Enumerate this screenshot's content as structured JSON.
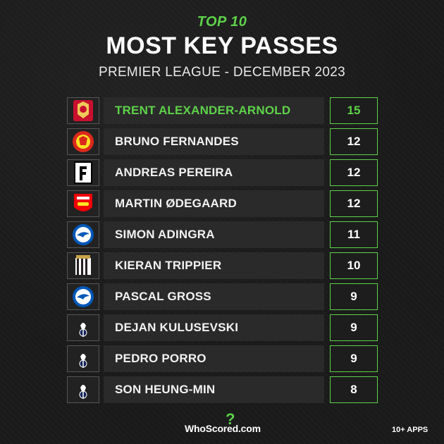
{
  "header": {
    "kicker": "TOP 10",
    "title": "MOST KEY PASSES",
    "subtitle": "PREMIER LEAGUE - DECEMBER 2023"
  },
  "players": [
    {
      "name": "TRENT ALEXANDER-ARNOLD",
      "value": "15",
      "club": "Liverpool",
      "crest_icon": "liverpool-crest-icon",
      "color": "#c8102e"
    },
    {
      "name": "BRUNO FERNANDES",
      "value": "12",
      "club": "Manchester United",
      "crest_icon": "man-utd-crest-icon",
      "color": "#da291c"
    },
    {
      "name": "ANDREAS PEREIRA",
      "value": "12",
      "club": "Fulham",
      "crest_icon": "fulham-crest-icon",
      "color": "#ffffff"
    },
    {
      "name": "MARTIN ØDEGAARD",
      "value": "12",
      "club": "Arsenal",
      "crest_icon": "arsenal-crest-icon",
      "color": "#ef0107"
    },
    {
      "name": "SIMON ADINGRA",
      "value": "11",
      "club": "Brighton",
      "crest_icon": "brighton-crest-icon",
      "color": "#0057b8"
    },
    {
      "name": "KIERAN TRIPPIER",
      "value": "10",
      "club": "Newcastle",
      "crest_icon": "newcastle-crest-icon",
      "color": "#241f20"
    },
    {
      "name": "PASCAL GROSS",
      "value": "9",
      "club": "Brighton",
      "crest_icon": "brighton-crest-icon",
      "color": "#0057b8"
    },
    {
      "name": "DEJAN KULUSEVSKI",
      "value": "9",
      "club": "Tottenham",
      "crest_icon": "tottenham-crest-icon",
      "color": "#132257"
    },
    {
      "name": "PEDRO PORRO",
      "value": "9",
      "club": "Tottenham",
      "crest_icon": "tottenham-crest-icon",
      "color": "#132257"
    },
    {
      "name": "SON HEUNG-MIN",
      "value": "8",
      "club": "Tottenham",
      "crest_icon": "tottenham-crest-icon",
      "color": "#132257"
    }
  ],
  "footer": {
    "brand": "WhoScored.com",
    "apps_note": "10+ APPS"
  },
  "colors": {
    "accent": "#5ed24a",
    "background": "#1a1a1a",
    "row": "#2a2a2a"
  }
}
